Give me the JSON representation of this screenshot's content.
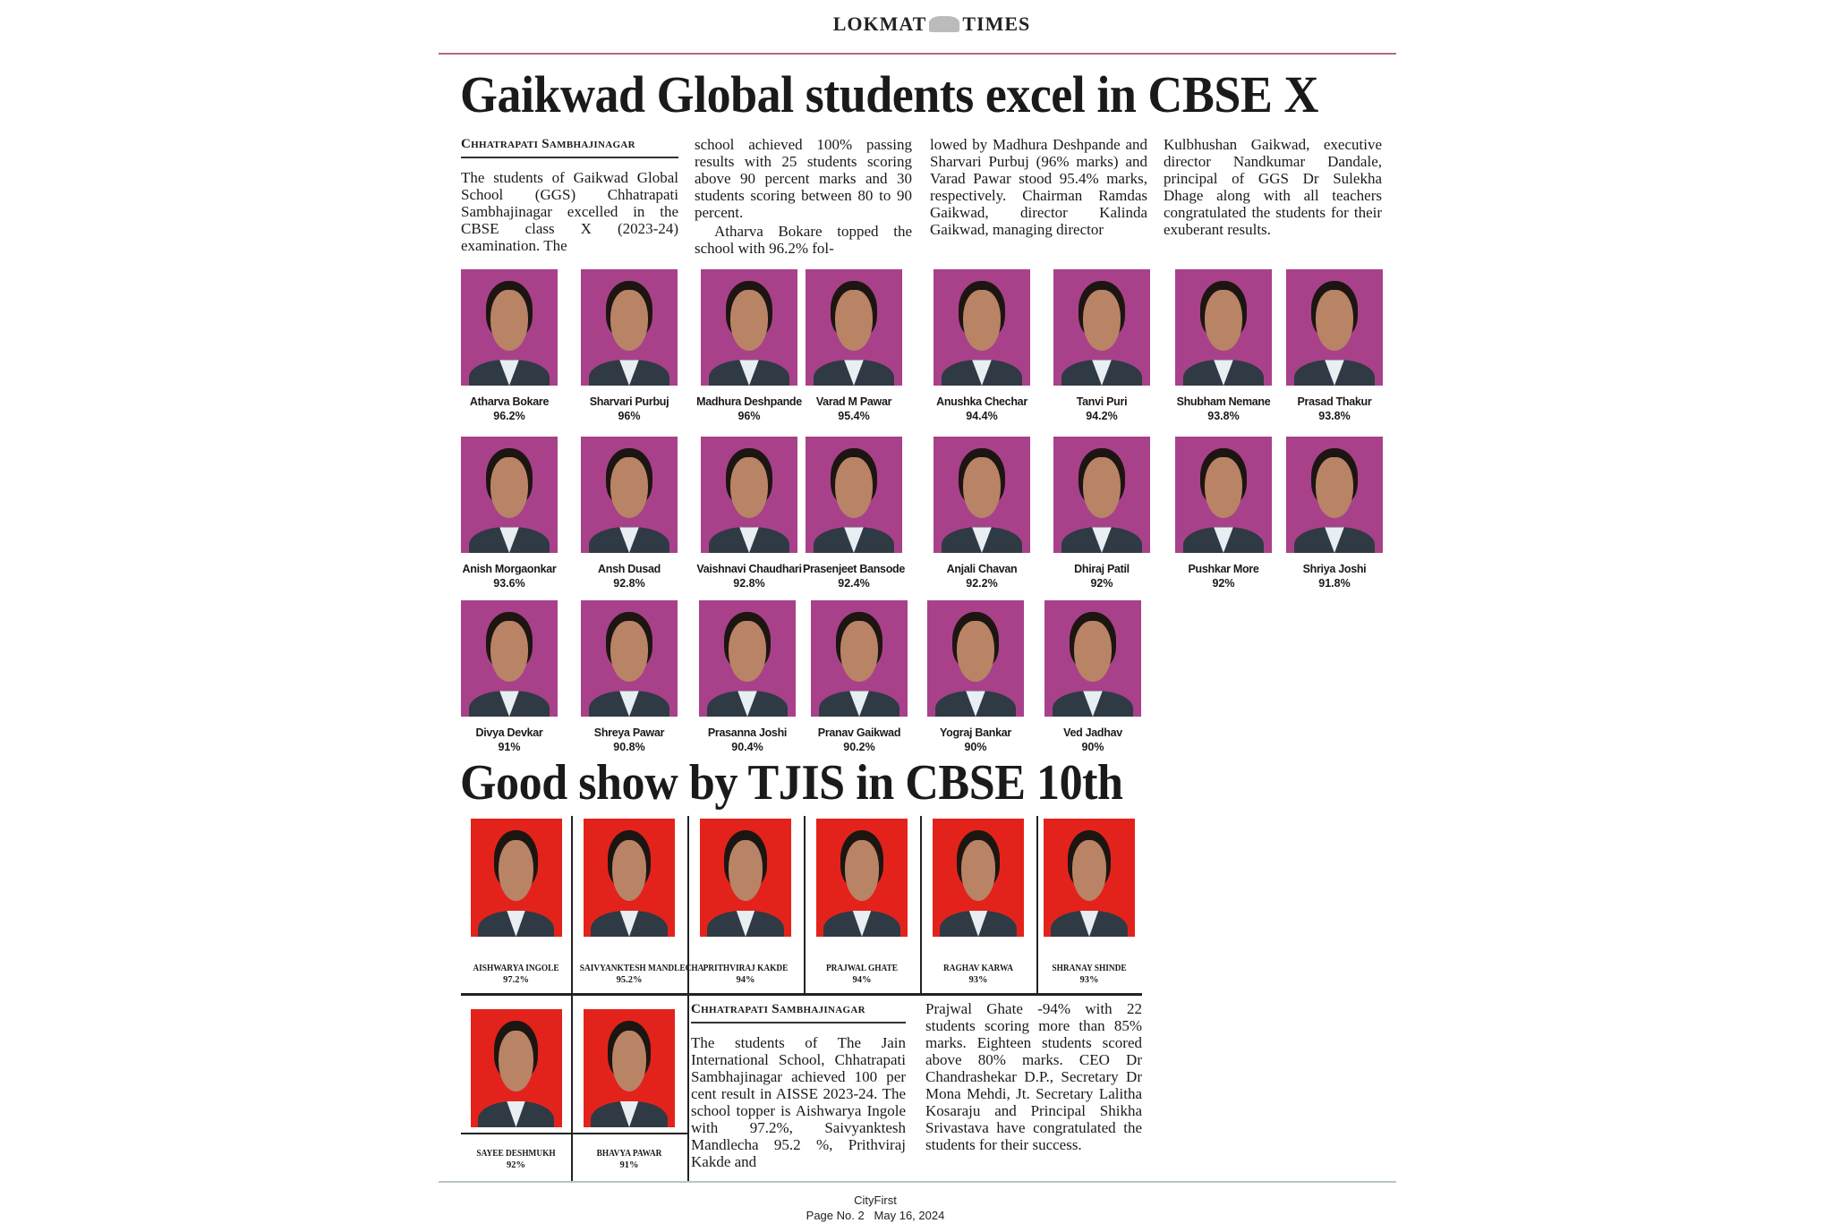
{
  "masthead": {
    "logo_text_left": "LOKMAT",
    "logo_text_right": "TIMES"
  },
  "colors": {
    "accent_rule": "#b06b7d",
    "ggs_photo_bg": "#a8418a",
    "tjis_photo_bg": "#e3231b"
  },
  "story1": {
    "headline": "Gaikwad Global students excel in CBSE X",
    "dateline": "Chhatrapati Sambhajinagar",
    "columns": [
      "The students of Gaikwad Global School (GGS) Chhatrapati Sambhajinagar excelled in the CBSE class X (2023-24) examination. The",
      "school achieved 100% passing results with 25 students scoring above 90 percent marks and 30 students scoring between 80 to 90 percent.",
      "Atharva Bokare topped the school with 96.2% fol-",
      "lowed by Madhura Deshpande and Sharvari Purbuj (96% marks) and Varad Pawar stood 95.4% marks, respectively. Chairman Ramdas Gaikwad, director Kalinda Gaikwad, managing director",
      "Kulbhushan Gaikwad, executive director Nandkumar Dandale, principal of GGS Dr Sulekha Dhage along with all teachers congratulated the students for their exuberant results."
    ],
    "students": [
      {
        "name": "Atharva Bokare",
        "score": "96.2%"
      },
      {
        "name": "Sharvari Purbuj",
        "score": "96%"
      },
      {
        "name": "Madhura Deshpande",
        "score": "96%"
      },
      {
        "name": "Varad M Pawar",
        "score": "95.4%"
      },
      {
        "name": "Anushka Chechar",
        "score": "94.4%"
      },
      {
        "name": "Tanvi Puri",
        "score": "94.2%"
      },
      {
        "name": "Shubham Nemane",
        "score": "93.8%"
      },
      {
        "name": "Prasad Thakur",
        "score": "93.8%"
      },
      {
        "name": "Anish Morgaonkar",
        "score": "93.6%"
      },
      {
        "name": "Ansh Dusad",
        "score": "92.8%"
      },
      {
        "name": "Vaishnavi Chaudhari",
        "score": "92.8%"
      },
      {
        "name": "Prasenjeet Bansode",
        "score": "92.4%"
      },
      {
        "name": "Anjali Chavan",
        "score": "92.2%"
      },
      {
        "name": "Dhiraj Patil",
        "score": "92%"
      },
      {
        "name": "Pushkar More",
        "score": "92%"
      },
      {
        "name": "Shriya Joshi",
        "score": "91.8%"
      },
      {
        "name": "Divya Devkar",
        "score": "91%"
      },
      {
        "name": "Shreya Pawar",
        "score": "90.8%"
      },
      {
        "name": "Prasanna Joshi",
        "score": "90.4%"
      },
      {
        "name": "Pranav Gaikwad",
        "score": "90.2%"
      },
      {
        "name": "Yograj Bankar",
        "score": "90%"
      },
      {
        "name": "Ved Jadhav",
        "score": "90%"
      }
    ]
  },
  "story2": {
    "headline": "Good show by TJIS in CBSE 10th",
    "dateline": "Chhatrapati Sambhajinagar",
    "columns": [
      "The students of The Jain International School, Chhatrapati Sambhajinagar achieved 100 per cent result in AISSE 2023-24. The school topper is Aishwarya Ingole with 97.2%, Saivyanktesh Mandlecha 95.2 %, Prithviraj Kakde and",
      "Prajwal Ghate -94% with 22 students scoring more than 85% marks. Eighteen students scored above 80% marks. CEO Dr Chandrashekar D.P., Secretary Dr Mona Mehdi, Jt. Secretary Lalitha Kosaraju and Principal Shikha Srivastava have congratulated the students for their success."
    ],
    "students": [
      {
        "name": "AISHWARYA INGOLE",
        "score": "97.2%"
      },
      {
        "name": "SAIVYANKTESH MANDLECHA",
        "score": "95.2%"
      },
      {
        "name": "PRITHVIRAJ KAKDE",
        "score": "94%"
      },
      {
        "name": "PRAJWAL GHATE",
        "score": "94%"
      },
      {
        "name": "RAGHAV KARWA",
        "score": "93%"
      },
      {
        "name": "SHRANAY SHINDE",
        "score": "93%"
      },
      {
        "name": "SAYEE DESHMUKH",
        "score": "92%"
      },
      {
        "name": "BHAVYA PAWAR",
        "score": "91%"
      }
    ]
  },
  "footer": {
    "section": "CityFirst",
    "page": "Page No. 2",
    "date": "May 16, 2024"
  }
}
